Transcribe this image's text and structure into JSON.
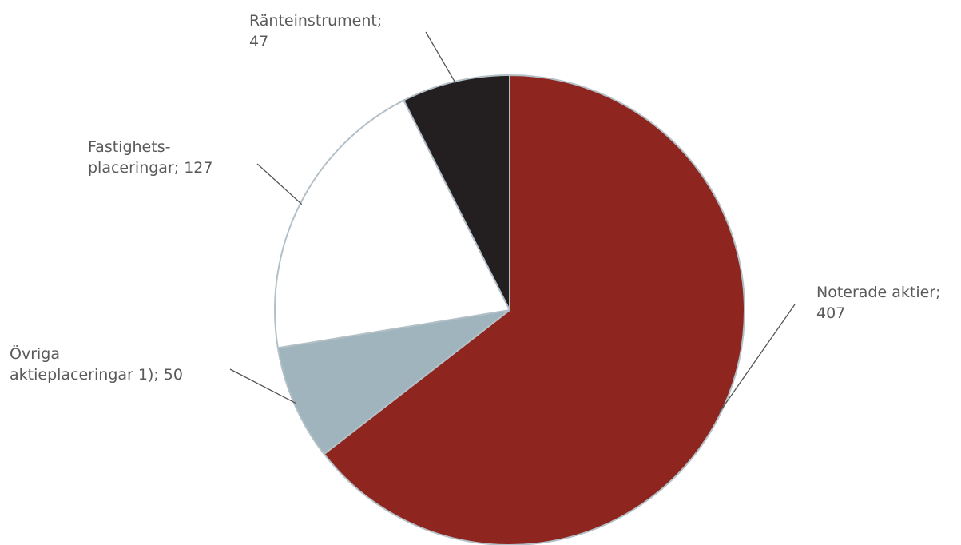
{
  "chart_data": {
    "type": "pie",
    "start": "12 o'clock",
    "direction": "clockwise",
    "slices": [
      {
        "label": "Noterade aktier",
        "value": 407,
        "color": "#8e261f",
        "label_lines": [
          "Noterade aktier;",
          "407"
        ]
      },
      {
        "label": "Övriga aktieplaceringar 1)",
        "value": 50,
        "color": "#9fb4bc",
        "label_lines": [
          "Övriga",
          "aktieplaceringar 1); 50"
        ]
      },
      {
        "label": "Fastighetsplaceringar",
        "value": 127,
        "color": "#ffffff",
        "label_lines": [
          "Fastighets-",
          "placeringar; 127"
        ]
      },
      {
        "label": "Ränteinstrument",
        "value": 47,
        "color": "#231f20",
        "label_lines": [
          "Ränteinstrument;",
          "47"
        ]
      }
    ]
  }
}
